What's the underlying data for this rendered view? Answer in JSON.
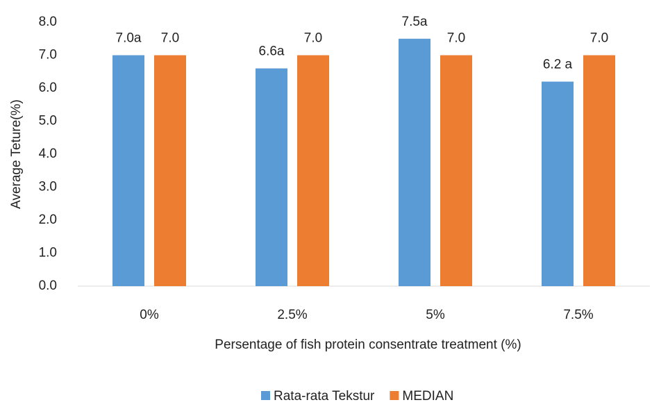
{
  "chart_data": {
    "type": "bar",
    "categories": [
      "0%",
      "2.5%",
      "5%",
      "7.5%"
    ],
    "series": [
      {
        "name": "Rata-rata Tekstur",
        "color": "#5b9bd5",
        "values": [
          7.0,
          6.6,
          7.5,
          6.2
        ],
        "value_labels": [
          "7.0a",
          "6.6a",
          "7.5a",
          "6.2 a"
        ]
      },
      {
        "name": "MEDIAN",
        "color": "#ed7d31",
        "values": [
          7.0,
          7.0,
          7.0,
          7.0
        ],
        "value_labels": [
          "7.0",
          "7.0",
          "7.0",
          "7.0"
        ]
      }
    ],
    "xlabel": "Persentage of fish protein consentrate treatment (%)",
    "ylabel": "Average Teture(%)",
    "ylim": [
      0,
      8
    ],
    "yticks": [
      {
        "value": 0,
        "label": "0.0"
      },
      {
        "value": 1,
        "label": "1.0"
      },
      {
        "value": 2,
        "label": "2.0"
      },
      {
        "value": 3,
        "label": "3.0"
      },
      {
        "value": 4,
        "label": "4.0"
      },
      {
        "value": 5,
        "label": "5.0"
      },
      {
        "value": 6,
        "label": "6.0"
      },
      {
        "value": 7,
        "label": "7.0"
      },
      {
        "value": 8,
        "label": "8.0"
      }
    ],
    "grid": false,
    "legend": "bottom"
  }
}
